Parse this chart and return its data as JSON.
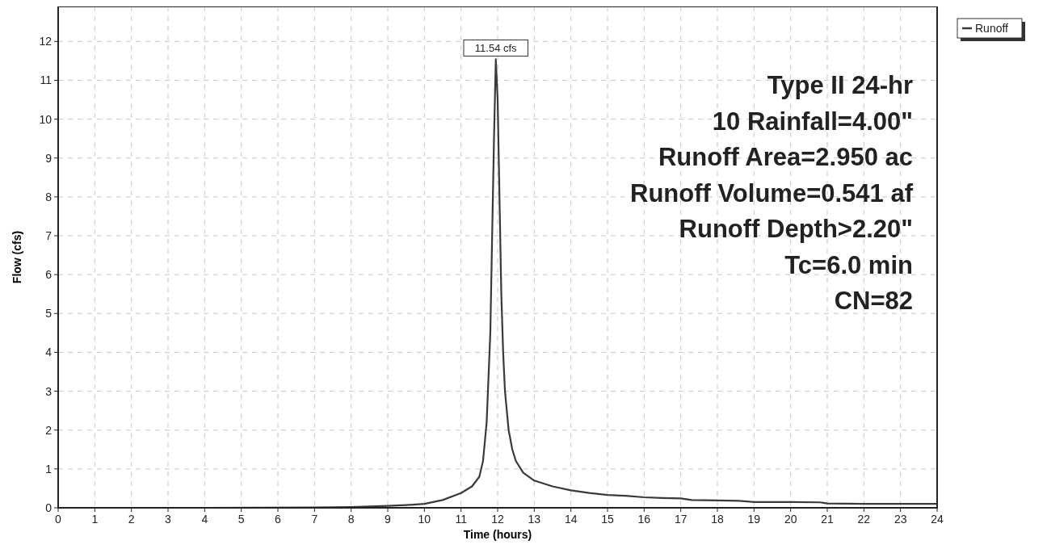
{
  "chart_data": {
    "type": "line",
    "xlabel": "Time  (hours)",
    "ylabel": "Flow  (cfs)",
    "xlim": [
      0,
      24
    ],
    "ylim": [
      0,
      12.9
    ],
    "xticks": [
      0,
      1,
      2,
      3,
      4,
      5,
      6,
      7,
      8,
      9,
      10,
      11,
      12,
      13,
      14,
      15,
      16,
      17,
      18,
      19,
      20,
      21,
      22,
      23,
      24
    ],
    "yticks": [
      0,
      1,
      2,
      3,
      4,
      5,
      6,
      7,
      8,
      9,
      10,
      11,
      12
    ],
    "grid": true,
    "legend": "top right",
    "line_style": "solid",
    "marker": "none",
    "series": [
      {
        "name": "Runoff",
        "color": "#3a3a3a",
        "x": [
          0,
          4,
          7,
          8,
          9,
          9.5,
          10,
          10.5,
          11,
          11.3,
          11.5,
          11.6,
          11.7,
          11.8,
          11.85,
          11.9,
          11.95,
          12.0,
          12.05,
          12.1,
          12.15,
          12.2,
          12.3,
          12.4,
          12.5,
          12.7,
          13,
          13.5,
          14,
          14.5,
          15,
          15.5,
          16,
          16.5,
          17,
          17.3,
          18,
          18.6,
          19,
          20,
          20.8,
          21,
          22,
          23,
          24
        ],
        "values": [
          0,
          0,
          0.01,
          0.02,
          0.05,
          0.07,
          0.1,
          0.2,
          0.38,
          0.55,
          0.8,
          1.2,
          2.2,
          4.5,
          7,
          9.5,
          11.54,
          10.5,
          8,
          5.5,
          4,
          3,
          2,
          1.5,
          1.2,
          0.9,
          0.7,
          0.55,
          0.45,
          0.38,
          0.33,
          0.31,
          0.27,
          0.25,
          0.24,
          0.2,
          0.19,
          0.18,
          0.15,
          0.15,
          0.14,
          0.11,
          0.1,
          0.1,
          0.1
        ]
      }
    ],
    "annotations": [
      {
        "text": "11.54 cfs",
        "x": 11.95,
        "y": 11.54
      },
      "Type II 24-hr",
      "10 Rainfall=4.00\"",
      "Runoff Area=2.950 ac",
      "Runoff Volume=0.541 af",
      "Runoff Depth>2.20\"",
      "Tc=6.0 min",
      "CN=82"
    ]
  }
}
